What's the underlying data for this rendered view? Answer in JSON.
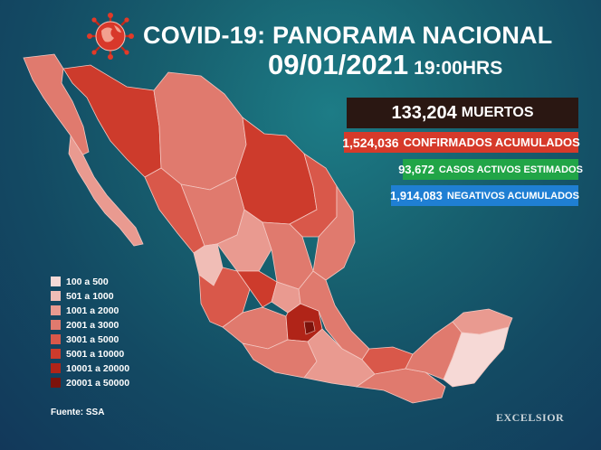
{
  "header": {
    "title": "COVID-19: PANORAMA NACIONAL",
    "date": "09/01/2021",
    "time": "19:00HRS"
  },
  "stats": {
    "deaths": {
      "value": "133,204",
      "label": "MUERTOS",
      "color": "#2a1712"
    },
    "confirmed": {
      "value": "1,524,036",
      "label": "CONFIRMADOS ACUMULADOS",
      "color": "#d63a2a"
    },
    "active": {
      "value": "93,672",
      "label": "CASOS ACTIVOS ESTIMADOS",
      "color": "#21a547"
    },
    "negative": {
      "value": "1,914,083",
      "label": "NEGATIVOS ACUMULADOS",
      "color": "#1f7fd3"
    }
  },
  "legend": [
    {
      "label": "100 a 500",
      "color": "#f6d9d6"
    },
    {
      "label": "501 a 1000",
      "color": "#f0bdb6"
    },
    {
      "label": "1001 a 2000",
      "color": "#e99a90"
    },
    {
      "label": "2001 a 3000",
      "color": "#e07a6e"
    },
    {
      "label": "3001 a 5000",
      "color": "#d9584a"
    },
    {
      "label": "5001 a 10000",
      "color": "#cd3b2c"
    },
    {
      "label": "10001 a 20000",
      "color": "#b02418"
    },
    {
      "label": "20001 a 50000",
      "color": "#7c130c"
    }
  ],
  "source": "Fuente: SSA",
  "brand": "EXCELSIOR"
}
